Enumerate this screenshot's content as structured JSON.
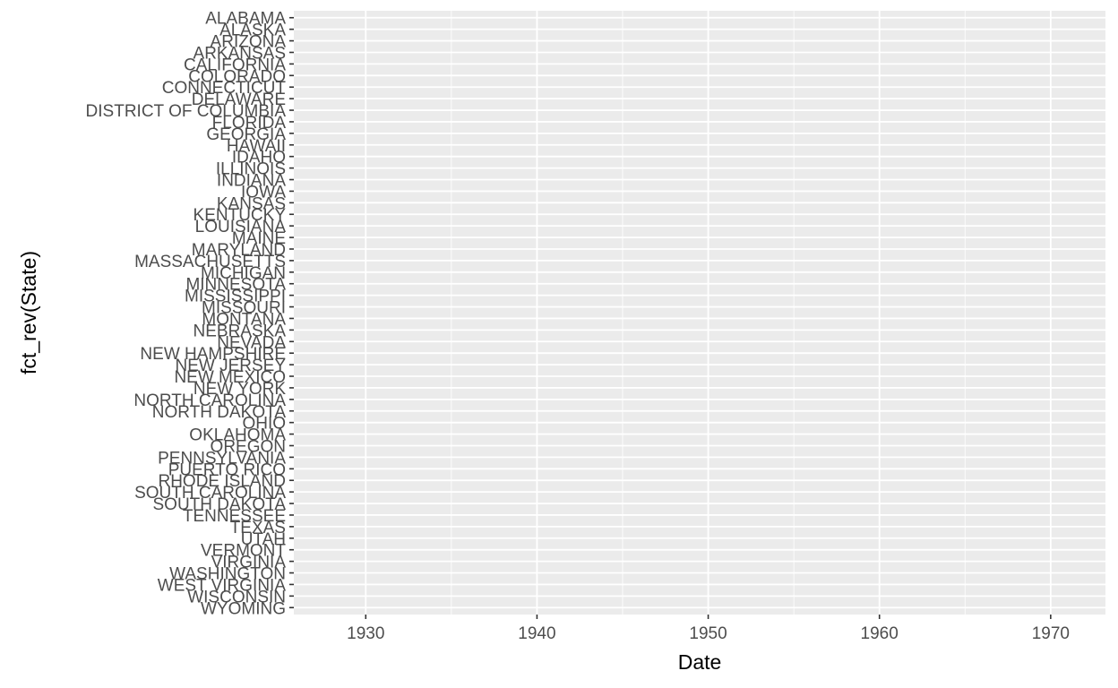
{
  "chart_data": {
    "type": "scatter",
    "title": "",
    "xlabel": "Date",
    "ylabel": "fct_rev(State)",
    "xlim": [
      1925.8,
      1973.2
    ],
    "x_ticks": [
      1930,
      1940,
      1950,
      1960,
      1970
    ],
    "x_minor": [
      1925,
      1935,
      1945,
      1955,
      1965
    ],
    "categories": [
      "ALABAMA",
      "ALASKA",
      "ARIZONA",
      "ARKANSAS",
      "CALIFORNIA",
      "COLORADO",
      "CONNECTICUT",
      "DELAWARE",
      "DISTRICT OF COLUMBIA",
      "FLORIDA",
      "GEORGIA",
      "HAWAII",
      "IDAHO",
      "ILLINOIS",
      "INDIANA",
      "IOWA",
      "KANSAS",
      "KENTUCKY",
      "LOUISIANA",
      "MAINE",
      "MARYLAND",
      "MASSACHUSETTS",
      "MICHIGAN",
      "MINNESOTA",
      "MISSISSIPPI",
      "MISSOURI",
      "MONTANA",
      "NEBRASKA",
      "NEVADA",
      "NEW HAMPSHIRE",
      "NEW JERSEY",
      "NEW MEXICO",
      "NEW YORK",
      "NORTH CAROLINA",
      "NORTH DAKOTA",
      "OHIO",
      "OKLAHOMA",
      "OREGON",
      "PENNSYLVANIA",
      "PUERTO RICO",
      "RHODE ISLAND",
      "SOUTH CAROLINA",
      "SOUTH DAKOTA",
      "TENNESSEE",
      "TEXAS",
      "UTAH",
      "VERMONT",
      "VIRGINIA",
      "WASHINGTON",
      "WEST VIRGINIA",
      "WISCONSIN",
      "WYOMING"
    ],
    "series": [],
    "grid": true,
    "legend": "none",
    "colors": {
      "panel": "#ebebeb",
      "grid": "#ffffff",
      "tick_text": "#4d4d4d",
      "tick_mark": "#333333",
      "title_text": "#000000"
    }
  }
}
